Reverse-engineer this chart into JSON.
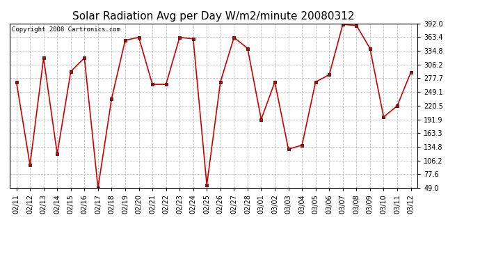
{
  "title": "Solar Radiation Avg per Day W/m2/minute 20080312",
  "copyright": "Copyright 2008 Cartronics.com",
  "dates": [
    "02/11",
    "02/12",
    "02/13",
    "02/14",
    "02/15",
    "02/16",
    "02/17",
    "02/18",
    "02/19",
    "02/20",
    "02/21",
    "02/22",
    "02/23",
    "02/24",
    "02/25",
    "02/26",
    "02/27",
    "02/28",
    "03/01",
    "03/02",
    "03/03",
    "03/04",
    "03/05",
    "03/06",
    "03/07",
    "03/08",
    "03/09",
    "03/10",
    "03/11",
    "03/12"
  ],
  "values": [
    270,
    97,
    320,
    120,
    292,
    320,
    49,
    235,
    357,
    363,
    265,
    265,
    363,
    360,
    55,
    270,
    363,
    340,
    192,
    270,
    130,
    138,
    270,
    285,
    390,
    388,
    340,
    197,
    220,
    290
  ],
  "ylim": [
    49.0,
    392.0
  ],
  "yticks": [
    49.0,
    77.6,
    106.2,
    134.8,
    163.3,
    191.9,
    220.5,
    249.1,
    277.7,
    306.2,
    334.8,
    363.4,
    392.0
  ],
  "line_color": "#cc0000",
  "marker_color": "#000000",
  "marker_face": "#cc0000",
  "bg_color": "#ffffff",
  "plot_bg_color": "#ffffff",
  "grid_color": "#bbbbbb",
  "title_fontsize": 11,
  "tick_fontsize": 7,
  "copyright_fontsize": 6.5,
  "figwidth": 6.9,
  "figheight": 3.75,
  "dpi": 100
}
